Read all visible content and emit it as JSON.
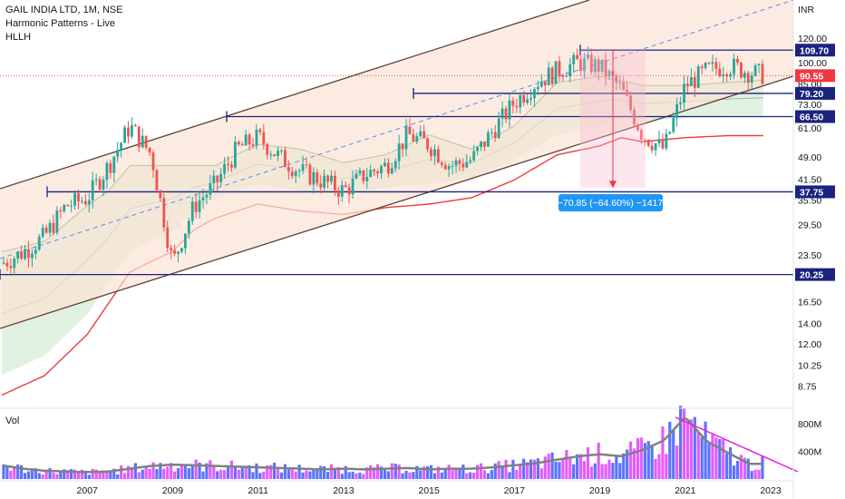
{
  "legend": {
    "symbol_line": "GAIL INDIA LTD, 1M, NSE",
    "indicator_1": "Harmonic Patterns - Live",
    "indicator_2": "HLLH"
  },
  "currency": "INR",
  "volume_label": "Vol",
  "measure_label": "−70.85 (−64.60%) −1417",
  "colors": {
    "up": "#26a69a",
    "down": "#ef5350",
    "level_line": "#1a237e",
    "channel": "#5d4037",
    "channel_fill": "#fbe3d4",
    "last_price": "#f23645",
    "measure": "#2196f3",
    "avg_line": "#808080",
    "trend_line": "#e91ee0"
  },
  "chart_data": [
    {
      "type": "candlestick",
      "title": "GAIL INDIA LTD, 1M, NSE",
      "y_scale": "log",
      "y_unit": "INR",
      "ylim": [
        7.5,
        160
      ],
      "y_ticks": [
        120.0,
        100.0,
        85.0,
        73.0,
        61.0,
        49.0,
        41.5,
        35.5,
        29.5,
        23.5,
        16.5,
        14.0,
        12.0,
        10.25,
        8.75
      ],
      "x_ticks": [
        "2007",
        "2009",
        "2011",
        "2013",
        "2015",
        "2017",
        "2019",
        "2021",
        "2023"
      ],
      "x_range": [
        2005.0,
        2023.0
      ],
      "level_badges": [
        109.7,
        79.2,
        66.5,
        37.75,
        20.25
      ],
      "last_price": 90.55,
      "measure": {
        "from": 109.7,
        "to": 38.85,
        "change": -70.85,
        "percent": -64.6,
        "bars": -1417
      },
      "series": [
        {
          "kind": "close",
          "x": [
            2005.0,
            2005.5,
            2006.0,
            2006.5,
            2007.0,
            2007.5,
            2008.0,
            2008.5,
            2009.0,
            2009.5,
            2010.0,
            2010.5,
            2011.0,
            2011.5,
            2012.0,
            2012.5,
            2013.0,
            2013.5,
            2014.0,
            2014.5,
            2015.0,
            2015.5,
            2016.0,
            2016.5,
            2017.0,
            2017.5,
            2018.0,
            2018.5,
            2019.0,
            2019.5,
            2020.0,
            2020.5,
            2021.0,
            2021.5,
            2022.0,
            2022.5,
            2023.0
          ],
          "y": [
            22,
            24,
            27,
            34,
            36,
            46,
            62,
            50,
            22,
            34,
            40,
            52,
            57,
            49,
            44,
            41,
            38,
            43,
            46,
            58,
            54,
            46,
            48,
            60,
            74,
            86,
            94,
            100,
            97,
            82,
            58,
            52,
            84,
            94,
            98,
            93,
            90.5
          ]
        },
        {
          "kind": "upper-cloud",
          "x": [
            2005.0,
            2006.0,
            2007.0,
            2007.5,
            2008.0,
            2009.0,
            2010.0,
            2010.5,
            2011.0,
            2012.0,
            2013.0,
            2014.0,
            2015.0,
            2016.0,
            2017.0,
            2018.0,
            2019.0,
            2020.0,
            2021.0,
            2022.0,
            2023.0
          ],
          "y": [
            24,
            26,
            34,
            38,
            46,
            46,
            46,
            50,
            54,
            52,
            47,
            50,
            58,
            52,
            62,
            86,
            90,
            84,
            84,
            86,
            88
          ]
        },
        {
          "kind": "lower-cloud",
          "x": [
            2005.0,
            2006.0,
            2007.0,
            2008.0,
            2008.5,
            2009.0,
            2009.5,
            2010.0,
            2011.0,
            2012.0,
            2013.0,
            2014.0,
            2015.0,
            2016.0,
            2017.0,
            2018.0,
            2019.0,
            2019.5,
            2020.0,
            2021.0,
            2022.0,
            2023.0
          ],
          "y": [
            9.5,
            11,
            15,
            24,
            26,
            28,
            33,
            36,
            40,
            38,
            37,
            39,
            40,
            42,
            48,
            58,
            62,
            66,
            64,
            66,
            67,
            67
          ]
        }
      ]
    },
    {
      "type": "bar",
      "title": "Vol",
      "y_ticks": [
        "800M",
        "400M"
      ],
      "ylim": [
        0,
        1000
      ],
      "unit": "M",
      "series": [
        {
          "name": "Vol",
          "x": [
            2005.0,
            2005.5,
            2006.0,
            2006.5,
            2007.0,
            2007.5,
            2008.0,
            2008.5,
            2009.0,
            2009.5,
            2010.0,
            2010.5,
            2011.0,
            2011.5,
            2012.0,
            2012.5,
            2013.0,
            2013.5,
            2014.0,
            2014.5,
            2015.0,
            2015.5,
            2016.0,
            2016.5,
            2017.0,
            2017.5,
            2018.0,
            2018.5,
            2019.0,
            2019.5,
            2020.0,
            2020.5,
            2021.0,
            2021.5,
            2022.0,
            2022.5
          ],
          "y": [
            200,
            150,
            120,
            110,
            100,
            110,
            150,
            190,
            210,
            200,
            190,
            180,
            170,
            160,
            150,
            140,
            150,
            140,
            150,
            160,
            140,
            150,
            150,
            170,
            200,
            230,
            280,
            330,
            360,
            330,
            420,
            560,
            900,
            550,
            380,
            220
          ]
        }
      ]
    }
  ]
}
